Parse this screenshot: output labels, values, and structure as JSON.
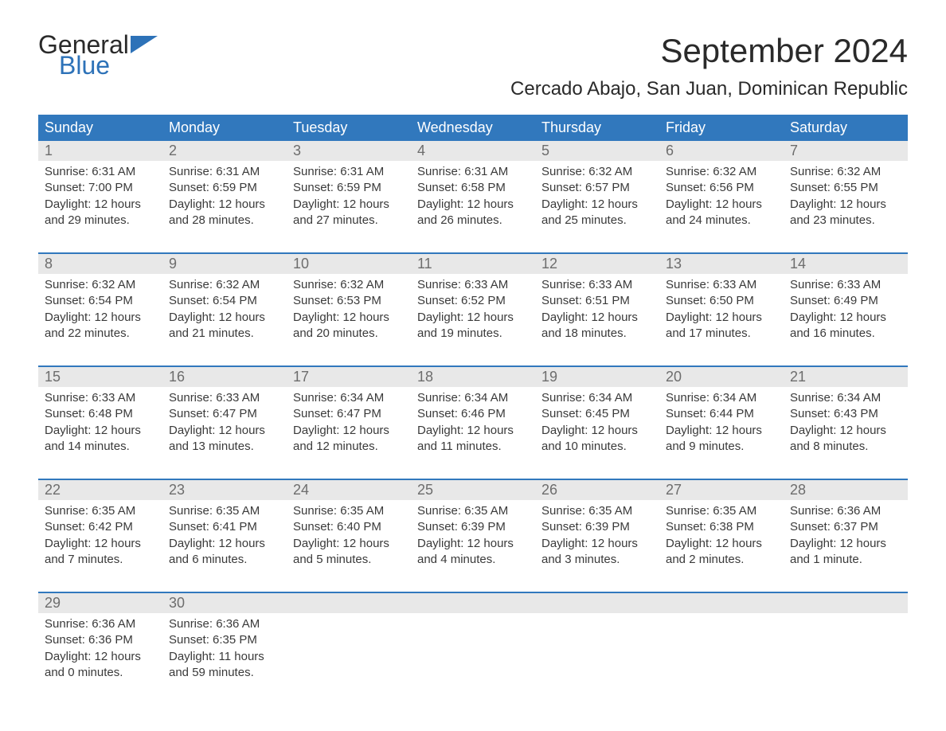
{
  "logo": {
    "top": "General",
    "bottom": "Blue",
    "flag_color": "#2d72b8"
  },
  "title": "September 2024",
  "subtitle": "Cercado Abajo, San Juan, Dominican Republic",
  "colors": {
    "header_bg": "#3178bd",
    "header_text": "#ffffff",
    "daynum_bg": "#e8e8e8",
    "daynum_text": "#6d6d6d",
    "body_text": "#3a3a3a",
    "week_border": "#3178bd"
  },
  "weekdays": [
    "Sunday",
    "Monday",
    "Tuesday",
    "Wednesday",
    "Thursday",
    "Friday",
    "Saturday"
  ],
  "weeks": [
    [
      {
        "n": "1",
        "sunrise": "Sunrise: 6:31 AM",
        "sunset": "Sunset: 7:00 PM",
        "day1": "Daylight: 12 hours",
        "day2": "and 29 minutes."
      },
      {
        "n": "2",
        "sunrise": "Sunrise: 6:31 AM",
        "sunset": "Sunset: 6:59 PM",
        "day1": "Daylight: 12 hours",
        "day2": "and 28 minutes."
      },
      {
        "n": "3",
        "sunrise": "Sunrise: 6:31 AM",
        "sunset": "Sunset: 6:59 PM",
        "day1": "Daylight: 12 hours",
        "day2": "and 27 minutes."
      },
      {
        "n": "4",
        "sunrise": "Sunrise: 6:31 AM",
        "sunset": "Sunset: 6:58 PM",
        "day1": "Daylight: 12 hours",
        "day2": "and 26 minutes."
      },
      {
        "n": "5",
        "sunrise": "Sunrise: 6:32 AM",
        "sunset": "Sunset: 6:57 PM",
        "day1": "Daylight: 12 hours",
        "day2": "and 25 minutes."
      },
      {
        "n": "6",
        "sunrise": "Sunrise: 6:32 AM",
        "sunset": "Sunset: 6:56 PM",
        "day1": "Daylight: 12 hours",
        "day2": "and 24 minutes."
      },
      {
        "n": "7",
        "sunrise": "Sunrise: 6:32 AM",
        "sunset": "Sunset: 6:55 PM",
        "day1": "Daylight: 12 hours",
        "day2": "and 23 minutes."
      }
    ],
    [
      {
        "n": "8",
        "sunrise": "Sunrise: 6:32 AM",
        "sunset": "Sunset: 6:54 PM",
        "day1": "Daylight: 12 hours",
        "day2": "and 22 minutes."
      },
      {
        "n": "9",
        "sunrise": "Sunrise: 6:32 AM",
        "sunset": "Sunset: 6:54 PM",
        "day1": "Daylight: 12 hours",
        "day2": "and 21 minutes."
      },
      {
        "n": "10",
        "sunrise": "Sunrise: 6:32 AM",
        "sunset": "Sunset: 6:53 PM",
        "day1": "Daylight: 12 hours",
        "day2": "and 20 minutes."
      },
      {
        "n": "11",
        "sunrise": "Sunrise: 6:33 AM",
        "sunset": "Sunset: 6:52 PM",
        "day1": "Daylight: 12 hours",
        "day2": "and 19 minutes."
      },
      {
        "n": "12",
        "sunrise": "Sunrise: 6:33 AM",
        "sunset": "Sunset: 6:51 PM",
        "day1": "Daylight: 12 hours",
        "day2": "and 18 minutes."
      },
      {
        "n": "13",
        "sunrise": "Sunrise: 6:33 AM",
        "sunset": "Sunset: 6:50 PM",
        "day1": "Daylight: 12 hours",
        "day2": "and 17 minutes."
      },
      {
        "n": "14",
        "sunrise": "Sunrise: 6:33 AM",
        "sunset": "Sunset: 6:49 PM",
        "day1": "Daylight: 12 hours",
        "day2": "and 16 minutes."
      }
    ],
    [
      {
        "n": "15",
        "sunrise": "Sunrise: 6:33 AM",
        "sunset": "Sunset: 6:48 PM",
        "day1": "Daylight: 12 hours",
        "day2": "and 14 minutes."
      },
      {
        "n": "16",
        "sunrise": "Sunrise: 6:33 AM",
        "sunset": "Sunset: 6:47 PM",
        "day1": "Daylight: 12 hours",
        "day2": "and 13 minutes."
      },
      {
        "n": "17",
        "sunrise": "Sunrise: 6:34 AM",
        "sunset": "Sunset: 6:47 PM",
        "day1": "Daylight: 12 hours",
        "day2": "and 12 minutes."
      },
      {
        "n": "18",
        "sunrise": "Sunrise: 6:34 AM",
        "sunset": "Sunset: 6:46 PM",
        "day1": "Daylight: 12 hours",
        "day2": "and 11 minutes."
      },
      {
        "n": "19",
        "sunrise": "Sunrise: 6:34 AM",
        "sunset": "Sunset: 6:45 PM",
        "day1": "Daylight: 12 hours",
        "day2": "and 10 minutes."
      },
      {
        "n": "20",
        "sunrise": "Sunrise: 6:34 AM",
        "sunset": "Sunset: 6:44 PM",
        "day1": "Daylight: 12 hours",
        "day2": "and 9 minutes."
      },
      {
        "n": "21",
        "sunrise": "Sunrise: 6:34 AM",
        "sunset": "Sunset: 6:43 PM",
        "day1": "Daylight: 12 hours",
        "day2": "and 8 minutes."
      }
    ],
    [
      {
        "n": "22",
        "sunrise": "Sunrise: 6:35 AM",
        "sunset": "Sunset: 6:42 PM",
        "day1": "Daylight: 12 hours",
        "day2": "and 7 minutes."
      },
      {
        "n": "23",
        "sunrise": "Sunrise: 6:35 AM",
        "sunset": "Sunset: 6:41 PM",
        "day1": "Daylight: 12 hours",
        "day2": "and 6 minutes."
      },
      {
        "n": "24",
        "sunrise": "Sunrise: 6:35 AM",
        "sunset": "Sunset: 6:40 PM",
        "day1": "Daylight: 12 hours",
        "day2": "and 5 minutes."
      },
      {
        "n": "25",
        "sunrise": "Sunrise: 6:35 AM",
        "sunset": "Sunset: 6:39 PM",
        "day1": "Daylight: 12 hours",
        "day2": "and 4 minutes."
      },
      {
        "n": "26",
        "sunrise": "Sunrise: 6:35 AM",
        "sunset": "Sunset: 6:39 PM",
        "day1": "Daylight: 12 hours",
        "day2": "and 3 minutes."
      },
      {
        "n": "27",
        "sunrise": "Sunrise: 6:35 AM",
        "sunset": "Sunset: 6:38 PM",
        "day1": "Daylight: 12 hours",
        "day2": "and 2 minutes."
      },
      {
        "n": "28",
        "sunrise": "Sunrise: 6:36 AM",
        "sunset": "Sunset: 6:37 PM",
        "day1": "Daylight: 12 hours",
        "day2": "and 1 minute."
      }
    ],
    [
      {
        "n": "29",
        "sunrise": "Sunrise: 6:36 AM",
        "sunset": "Sunset: 6:36 PM",
        "day1": "Daylight: 12 hours",
        "day2": "and 0 minutes."
      },
      {
        "n": "30",
        "sunrise": "Sunrise: 6:36 AM",
        "sunset": "Sunset: 6:35 PM",
        "day1": "Daylight: 11 hours",
        "day2": "and 59 minutes."
      },
      null,
      null,
      null,
      null,
      null
    ]
  ]
}
